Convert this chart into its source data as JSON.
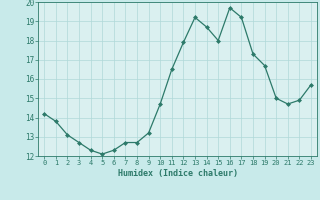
{
  "x": [
    0,
    1,
    2,
    3,
    4,
    5,
    6,
    7,
    8,
    9,
    10,
    11,
    12,
    13,
    14,
    15,
    16,
    17,
    18,
    19,
    20,
    21,
    22,
    23
  ],
  "y": [
    14.2,
    13.8,
    13.1,
    12.7,
    12.3,
    12.1,
    12.3,
    12.7,
    12.7,
    13.2,
    14.7,
    16.5,
    17.9,
    19.2,
    18.7,
    18.0,
    19.7,
    19.2,
    17.3,
    16.7,
    15.0,
    14.7,
    14.9,
    15.7
  ],
  "xlabel": "Humidex (Indice chaleur)",
  "ylim": [
    12,
    20
  ],
  "xlim_min": -0.5,
  "xlim_max": 23.5,
  "yticks": [
    12,
    13,
    14,
    15,
    16,
    17,
    18,
    19,
    20
  ],
  "xticks": [
    0,
    1,
    2,
    3,
    4,
    5,
    6,
    7,
    8,
    9,
    10,
    11,
    12,
    13,
    14,
    15,
    16,
    17,
    18,
    19,
    20,
    21,
    22,
    23
  ],
  "line_color": "#2d7a6a",
  "marker_color": "#2d7a6a",
  "bg_color": "#c8eaea",
  "grid_color": "#b0d8d8",
  "plot_bg": "#daf0f0",
  "label_color": "#2d7a6a"
}
